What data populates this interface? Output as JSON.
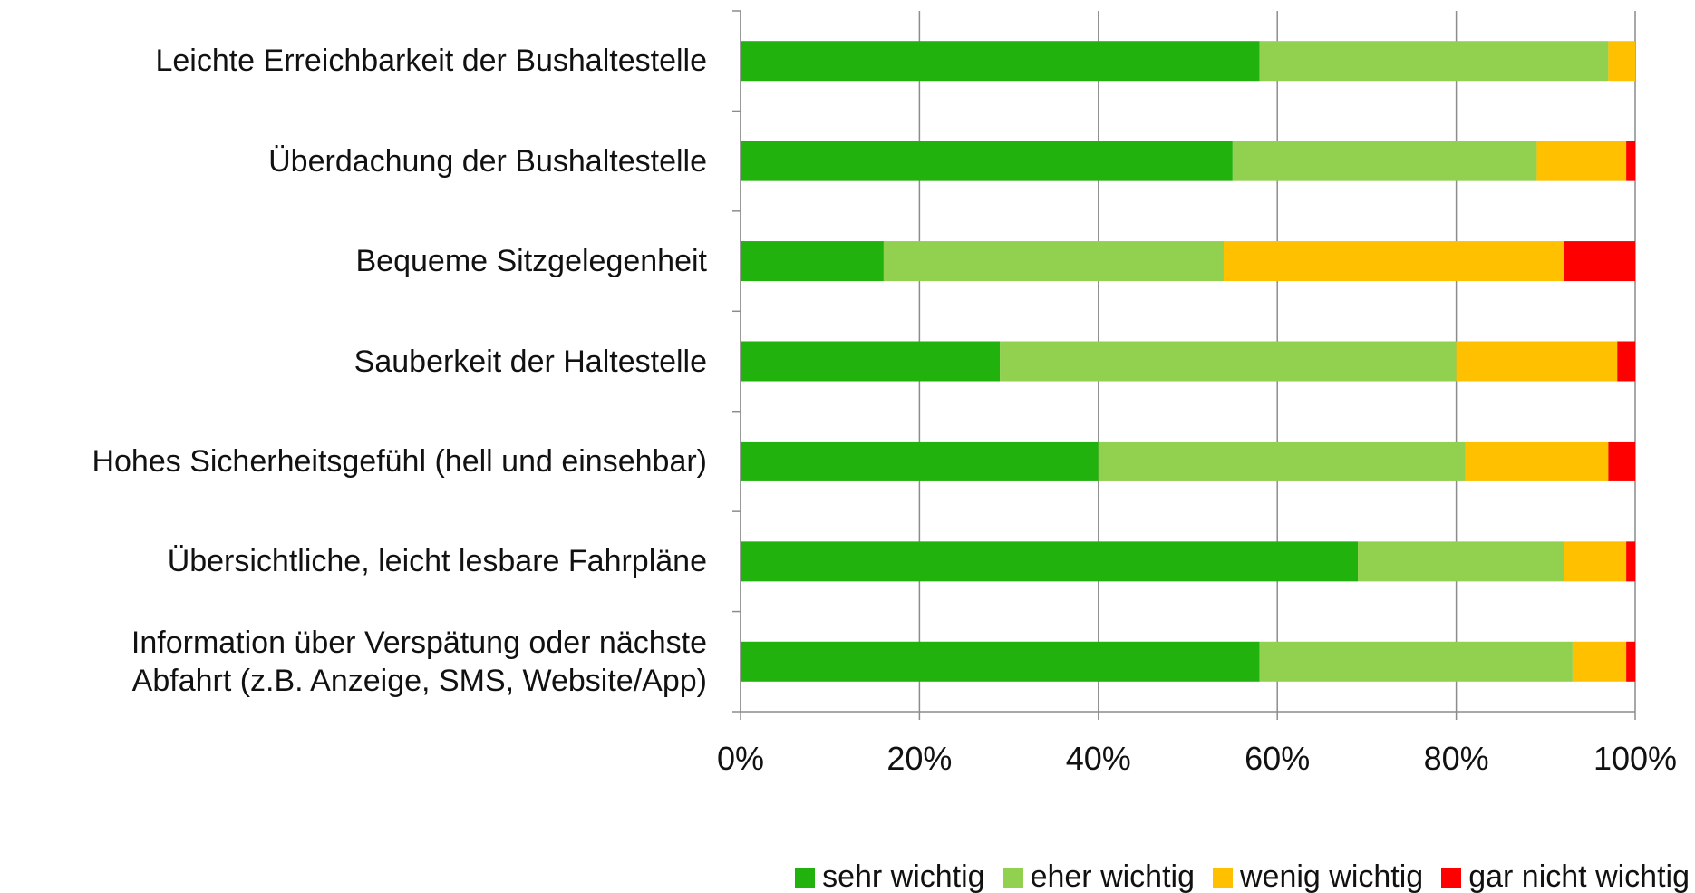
{
  "chart_data": {
    "type": "stacked_barh",
    "categories": [
      "Leichte Erreichbarkeit der Bushaltestelle",
      "Überdachung der Bushaltestelle",
      "Bequeme Sitzgelegenheit",
      "Sauberkeit der Haltestelle",
      "Hohes Sicherheitsgefühl (hell und einsehbar)",
      "Übersichtliche, leicht lesbare Fahrpläne",
      "Information über Verspätung oder nächste\nAbfahrt (z.B. Anzeige, SMS, Website/App)"
    ],
    "series": [
      {
        "name": "sehr wichtig",
        "color": "#21b20e",
        "values": [
          58,
          55,
          16,
          29,
          40,
          69,
          58
        ]
      },
      {
        "name": "eher wichtig",
        "color": "#92d050",
        "values": [
          39,
          34,
          38,
          51,
          41,
          23,
          35
        ]
      },
      {
        "name": "wenig wichtig",
        "color": "#ffc000",
        "values": [
          3,
          10,
          38,
          18,
          16,
          7,
          6
        ]
      },
      {
        "name": "gar nicht wichtig",
        "color": "#ff0000",
        "values": [
          0,
          1,
          8,
          2,
          3,
          1,
          1
        ]
      }
    ],
    "xlim": [
      0,
      100
    ],
    "xticks": [
      {
        "value": 0,
        "label": "0%"
      },
      {
        "value": 20,
        "label": "20%"
      },
      {
        "value": 40,
        "label": "40%"
      },
      {
        "value": 60,
        "label": "60%"
      },
      {
        "value": 80,
        "label": "80%"
      },
      {
        "value": 100,
        "label": "100%"
      }
    ],
    "grid": true,
    "legend": "bottom-right"
  }
}
